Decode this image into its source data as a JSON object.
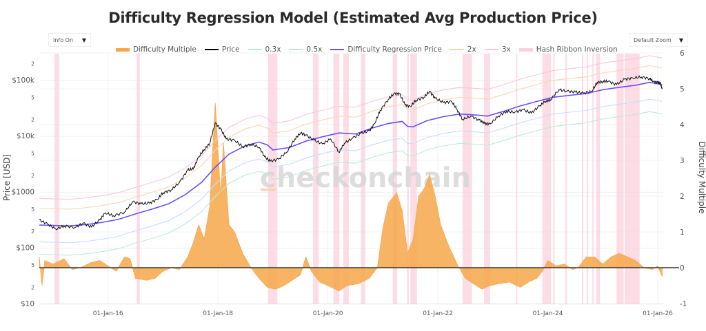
{
  "header": {
    "title": "Difficulty Regression Model (Estimated Avg Production Price)"
  },
  "controls": {
    "info_dropdown": {
      "value": "Info On",
      "icon": "caret-down-icon"
    },
    "zoom_dropdown": {
      "value": "Default Zoom",
      "icon": "caret-down-icon"
    }
  },
  "legend": [
    {
      "label": "Difficulty Multiple",
      "color": "#f7a74a",
      "kind": "area"
    },
    {
      "label": "Price",
      "color": "#000000",
      "kind": "line"
    },
    {
      "label": "0.3x",
      "color": "#b9ecd6",
      "kind": "line"
    },
    {
      "label": "0.5x",
      "color": "#c9dcff",
      "kind": "line"
    },
    {
      "label": "Difficulty Regression Price",
      "color": "#6a4bff",
      "kind": "line"
    },
    {
      "label": "2x",
      "color": "#fdd3b3",
      "kind": "line"
    },
    {
      "label": "3x",
      "color": "#fbc6d4",
      "kind": "line"
    },
    {
      "label": "Hash Ribbon Inversion",
      "color": "#fbd0dc",
      "kind": "band"
    }
  ],
  "watermark": "checkonchain",
  "chart_data": {
    "type": "line",
    "title": "Difficulty Regression Model (Estimated Avg Production Price)",
    "xlabel": "",
    "ylabel": "Price [USD]",
    "y2label": "Difficulty Multiple",
    "xlim": [
      2014.75,
      2026.1
    ],
    "ylim": [
      10,
      300000
    ],
    "y_scale": "log",
    "y2lim": [
      -1,
      6
    ],
    "grid": true,
    "legend_position": "top",
    "x_ticks": [
      {
        "value": 2016.0,
        "label": "01-Jan-16"
      },
      {
        "value": 2018.0,
        "label": "01-Jan-18"
      },
      {
        "value": 2020.0,
        "label": "01-Jan-20"
      },
      {
        "value": 2022.0,
        "label": "01-Jan-22"
      },
      {
        "value": 2024.0,
        "label": "01-Jan-24"
      },
      {
        "value": 2026.0,
        "label": "01-Jan-26"
      }
    ],
    "y_ticks": [
      {
        "value": 10,
        "label": "$10",
        "major": true
      },
      {
        "value": 20,
        "label": "2",
        "major": false
      },
      {
        "value": 50,
        "label": "5",
        "major": false
      },
      {
        "value": 100,
        "label": "$100",
        "major": true
      },
      {
        "value": 200,
        "label": "2",
        "major": false
      },
      {
        "value": 500,
        "label": "5",
        "major": false
      },
      {
        "value": 1000,
        "label": "$1000",
        "major": true
      },
      {
        "value": 2000,
        "label": "2",
        "major": false
      },
      {
        "value": 5000,
        "label": "5",
        "major": false
      },
      {
        "value": 10000,
        "label": "$10k",
        "major": true
      },
      {
        "value": 20000,
        "label": "2",
        "major": false
      },
      {
        "value": 50000,
        "label": "5",
        "major": false
      },
      {
        "value": 100000,
        "label": "$100k",
        "major": true
      },
      {
        "value": 200000,
        "label": "2",
        "major": false
      }
    ],
    "y2_ticks": [
      -1,
      0,
      1,
      2,
      3,
      4,
      5,
      6
    ],
    "series": [
      {
        "name": "Price",
        "axis": "y",
        "color": "#111111",
        "points": [
          [
            2014.75,
            320
          ],
          [
            2014.9,
            270
          ],
          [
            2015.05,
            220
          ],
          [
            2015.2,
            250
          ],
          [
            2015.4,
            235
          ],
          [
            2015.55,
            280
          ],
          [
            2015.7,
            240
          ],
          [
            2015.85,
            320
          ],
          [
            2015.95,
            430
          ],
          [
            2016.1,
            380
          ],
          [
            2016.3,
            440
          ],
          [
            2016.45,
            680
          ],
          [
            2016.6,
            620
          ],
          [
            2016.75,
            640
          ],
          [
            2016.9,
            750
          ],
          [
            2017.0,
            980
          ],
          [
            2017.15,
            1100
          ],
          [
            2017.3,
            1500
          ],
          [
            2017.45,
            2500
          ],
          [
            2017.55,
            2600
          ],
          [
            2017.65,
            4300
          ],
          [
            2017.75,
            5800
          ],
          [
            2017.85,
            7500
          ],
          [
            2017.95,
            17500
          ],
          [
            2018.05,
            13500
          ],
          [
            2018.15,
            9000
          ],
          [
            2018.3,
            8500
          ],
          [
            2018.45,
            6500
          ],
          [
            2018.6,
            7200
          ],
          [
            2018.75,
            6400
          ],
          [
            2018.85,
            4300
          ],
          [
            2018.95,
            3600
          ],
          [
            2019.1,
            3900
          ],
          [
            2019.25,
            5200
          ],
          [
            2019.4,
            9000
          ],
          [
            2019.5,
            11500
          ],
          [
            2019.6,
            10500
          ],
          [
            2019.75,
            8500
          ],
          [
            2019.9,
            7300
          ],
          [
            2020.05,
            9000
          ],
          [
            2020.2,
            5200
          ],
          [
            2020.3,
            7500
          ],
          [
            2020.45,
            9300
          ],
          [
            2020.6,
            11300
          ],
          [
            2020.75,
            12500
          ],
          [
            2020.85,
            17000
          ],
          [
            2020.95,
            29000
          ],
          [
            2021.1,
            46000
          ],
          [
            2021.2,
            58000
          ],
          [
            2021.3,
            58000
          ],
          [
            2021.4,
            37000
          ],
          [
            2021.5,
            34000
          ],
          [
            2021.6,
            44000
          ],
          [
            2021.75,
            50000
          ],
          [
            2021.85,
            64000
          ],
          [
            2021.95,
            48000
          ],
          [
            2022.1,
            40000
          ],
          [
            2022.25,
            42000
          ],
          [
            2022.35,
            30000
          ],
          [
            2022.45,
            20000
          ],
          [
            2022.6,
            23000
          ],
          [
            2022.75,
            19500
          ],
          [
            2022.85,
            17000
          ],
          [
            2022.95,
            16600
          ],
          [
            2023.1,
            23000
          ],
          [
            2023.25,
            28000
          ],
          [
            2023.4,
            27000
          ],
          [
            2023.55,
            30000
          ],
          [
            2023.7,
            26000
          ],
          [
            2023.85,
            35000
          ],
          [
            2023.95,
            42000
          ],
          [
            2024.05,
            45000
          ],
          [
            2024.2,
            68000
          ],
          [
            2024.35,
            64000
          ],
          [
            2024.5,
            62000
          ],
          [
            2024.65,
            59000
          ],
          [
            2024.8,
            64000
          ],
          [
            2024.9,
            92000
          ],
          [
            2025.0,
            95000
          ],
          [
            2025.1,
            96000
          ],
          [
            2025.25,
            84000
          ],
          [
            2025.4,
            105000
          ],
          [
            2025.55,
            110000
          ],
          [
            2025.7,
            115000
          ],
          [
            2025.85,
            108000
          ],
          [
            2025.92,
            95000
          ],
          [
            2026.0,
            92000
          ],
          [
            2026.05,
            88000
          ],
          [
            2026.08,
            70000
          ]
        ]
      },
      {
        "name": "Difficulty Regression Price",
        "axis": "y",
        "color": "#6a4bff",
        "points": [
          [
            2014.75,
            260
          ],
          [
            2015.0,
            255
          ],
          [
            2015.3,
            250
          ],
          [
            2015.6,
            265
          ],
          [
            2015.9,
            290
          ],
          [
            2016.2,
            330
          ],
          [
            2016.5,
            410
          ],
          [
            2016.8,
            500
          ],
          [
            2017.1,
            620
          ],
          [
            2017.4,
            900
          ],
          [
            2017.7,
            1500
          ],
          [
            2017.95,
            2800
          ],
          [
            2018.2,
            4800
          ],
          [
            2018.5,
            6800
          ],
          [
            2018.75,
            7900
          ],
          [
            2018.9,
            7000
          ],
          [
            2019.0,
            5700
          ],
          [
            2019.3,
            6300
          ],
          [
            2019.6,
            8200
          ],
          [
            2019.9,
            9800
          ],
          [
            2020.2,
            11500
          ],
          [
            2020.5,
            11000
          ],
          [
            2020.8,
            14000
          ],
          [
            2021.1,
            17000
          ],
          [
            2021.35,
            18500
          ],
          [
            2021.45,
            15000
          ],
          [
            2021.55,
            14800
          ],
          [
            2021.8,
            19000
          ],
          [
            2022.1,
            22500
          ],
          [
            2022.4,
            25000
          ],
          [
            2022.7,
            24000
          ],
          [
            2022.9,
            23000
          ],
          [
            2023.2,
            28000
          ],
          [
            2023.5,
            35000
          ],
          [
            2023.8,
            42000
          ],
          [
            2024.1,
            50000
          ],
          [
            2024.4,
            54000
          ],
          [
            2024.7,
            58000
          ],
          [
            2025.0,
            68000
          ],
          [
            2025.3,
            75000
          ],
          [
            2025.6,
            82000
          ],
          [
            2025.85,
            92000
          ],
          [
            2026.08,
            84000
          ]
        ]
      },
      {
        "name": "0.3x",
        "axis": "y",
        "color": "#b9ecd6",
        "multiplier_of": "Difficulty Regression Price",
        "multiplier": 0.3
      },
      {
        "name": "0.5x",
        "axis": "y",
        "color": "#c9dcff",
        "multiplier_of": "Difficulty Regression Price",
        "multiplier": 0.5
      },
      {
        "name": "2x",
        "axis": "y",
        "color": "#fdd3b3",
        "multiplier_of": "Difficulty Regression Price",
        "multiplier": 2
      },
      {
        "name": "3x",
        "axis": "y",
        "color": "#fbc6d4",
        "multiplier_of": "Difficulty Regression Price",
        "multiplier": 3
      },
      {
        "name": "Difficulty Multiple",
        "axis": "y2",
        "color": "#f7a74a",
        "type": "area",
        "points": [
          [
            2014.75,
            0.3
          ],
          [
            2014.8,
            -0.5
          ],
          [
            2014.85,
            0.2
          ],
          [
            2015.0,
            0.1
          ],
          [
            2015.2,
            0.25
          ],
          [
            2015.35,
            -0.05
          ],
          [
            2015.5,
            0.0
          ],
          [
            2015.7,
            0.15
          ],
          [
            2015.85,
            0.2
          ],
          [
            2016.0,
            0.05
          ],
          [
            2016.15,
            -0.1
          ],
          [
            2016.3,
            0.3
          ],
          [
            2016.4,
            0.25
          ],
          [
            2016.5,
            -0.3
          ],
          [
            2016.7,
            -0.35
          ],
          [
            2016.85,
            -0.3
          ],
          [
            2017.0,
            -0.1
          ],
          [
            2017.15,
            0.0
          ],
          [
            2017.3,
            -0.05
          ],
          [
            2017.45,
            0.3
          ],
          [
            2017.55,
            0.7
          ],
          [
            2017.65,
            1.2
          ],
          [
            2017.75,
            0.8
          ],
          [
            2017.85,
            1.7
          ],
          [
            2017.95,
            4.6
          ],
          [
            2018.05,
            2.0
          ],
          [
            2018.1,
            3.5
          ],
          [
            2018.2,
            1.2
          ],
          [
            2018.3,
            1.0
          ],
          [
            2018.45,
            0.4
          ],
          [
            2018.6,
            0.0
          ],
          [
            2018.75,
            -0.3
          ],
          [
            2018.9,
            -0.55
          ],
          [
            2019.05,
            -0.6
          ],
          [
            2019.2,
            -0.5
          ],
          [
            2019.35,
            -0.35
          ],
          [
            2019.5,
            -0.2
          ],
          [
            2019.6,
            0.3
          ],
          [
            2019.7,
            -0.1
          ],
          [
            2019.85,
            -0.4
          ],
          [
            2020.0,
            -0.5
          ],
          [
            2020.2,
            -0.65
          ],
          [
            2020.35,
            -0.5
          ],
          [
            2020.55,
            -0.45
          ],
          [
            2020.75,
            -0.3
          ],
          [
            2020.9,
            0.0
          ],
          [
            2021.0,
            1.1
          ],
          [
            2021.1,
            1.8
          ],
          [
            2021.25,
            2.1
          ],
          [
            2021.35,
            1.6
          ],
          [
            2021.45,
            0.4
          ],
          [
            2021.55,
            0.8
          ],
          [
            2021.65,
            2.0
          ],
          [
            2021.75,
            2.2
          ],
          [
            2021.85,
            2.6
          ],
          [
            2021.95,
            2.0
          ],
          [
            2022.05,
            1.2
          ],
          [
            2022.2,
            0.6
          ],
          [
            2022.35,
            0.1
          ],
          [
            2022.5,
            -0.3
          ],
          [
            2022.65,
            -0.45
          ],
          [
            2022.8,
            -0.6
          ],
          [
            2022.95,
            -0.5
          ],
          [
            2023.1,
            -0.45
          ],
          [
            2023.3,
            -0.4
          ],
          [
            2023.5,
            -0.55
          ],
          [
            2023.65,
            -0.4
          ],
          [
            2023.8,
            -0.3
          ],
          [
            2023.9,
            -0.1
          ],
          [
            2024.0,
            0.2
          ],
          [
            2024.15,
            0.05
          ],
          [
            2024.3,
            0.1
          ],
          [
            2024.45,
            -0.05
          ],
          [
            2024.55,
            0.0
          ],
          [
            2024.7,
            0.3
          ],
          [
            2024.85,
            0.3
          ],
          [
            2025.0,
            0.1
          ],
          [
            2025.15,
            0.3
          ],
          [
            2025.3,
            0.4
          ],
          [
            2025.45,
            0.3
          ],
          [
            2025.6,
            0.2
          ],
          [
            2025.75,
            0.0
          ],
          [
            2025.9,
            -0.05
          ],
          [
            2026.0,
            0.05
          ],
          [
            2026.08,
            -0.25
          ]
        ]
      }
    ],
    "bands": {
      "name": "Hash Ribbon Inversion",
      "color": "#fbd0dc",
      "ranges": [
        [
          2015.03,
          2015.11
        ],
        [
          2016.52,
          2016.58
        ],
        [
          2018.91,
          2019.08
        ],
        [
          2019.73,
          2019.83
        ],
        [
          2020.1,
          2020.21
        ],
        [
          2020.28,
          2020.38
        ],
        [
          2020.6,
          2020.68
        ],
        [
          2021.18,
          2021.26
        ],
        [
          2021.44,
          2021.47
        ],
        [
          2021.5,
          2021.62
        ],
        [
          2022.45,
          2022.62
        ],
        [
          2022.84,
          2022.95
        ],
        [
          2023.42,
          2023.44
        ],
        [
          2023.9,
          2024.06
        ],
        [
          2024.1,
          2024.12
        ],
        [
          2024.32,
          2024.34
        ],
        [
          2024.62,
          2024.64
        ],
        [
          2024.71,
          2024.73
        ],
        [
          2024.81,
          2024.83
        ],
        [
          2024.88,
          2024.95
        ],
        [
          2025.25,
          2025.38
        ],
        [
          2025.4,
          2025.6
        ],
        [
          2025.6,
          2025.67
        ]
      ]
    }
  }
}
